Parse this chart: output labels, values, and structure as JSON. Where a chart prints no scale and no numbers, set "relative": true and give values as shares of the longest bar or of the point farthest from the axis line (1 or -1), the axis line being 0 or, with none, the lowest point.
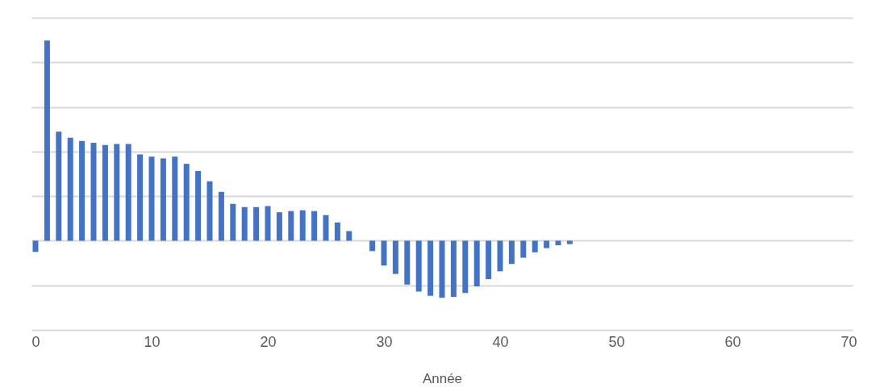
{
  "chart_data": {
    "type": "bar",
    "relative": true,
    "xlabel": "Année",
    "x": [
      0,
      1,
      2,
      3,
      4,
      5,
      6,
      7,
      8,
      9,
      10,
      11,
      12,
      13,
      14,
      15,
      16,
      17,
      18,
      19,
      20,
      21,
      22,
      23,
      24,
      25,
      26,
      27,
      28,
      29,
      30,
      31,
      32,
      33,
      34,
      35,
      36,
      37,
      38,
      39,
      40,
      41,
      42,
      43,
      44,
      45,
      46
    ],
    "values": [
      -0.056,
      1,
      0.545,
      0.514,
      0.498,
      0.489,
      0.478,
      0.483,
      0.483,
      0.431,
      0.42,
      0.411,
      0.42,
      0.384,
      0.348,
      0.297,
      0.244,
      0.184,
      0.168,
      0.168,
      0.173,
      0.142,
      0.148,
      0.152,
      0.148,
      0.128,
      0.091,
      0.048,
      0,
      -0.052,
      -0.124,
      -0.166,
      -0.219,
      -0.254,
      -0.275,
      -0.285,
      -0.281,
      -0.261,
      -0.228,
      -0.192,
      -0.153,
      -0.116,
      -0.085,
      -0.058,
      -0.037,
      -0.023,
      -0.017
    ],
    "color": "#4472c4",
    "xlim": [
      0,
      70
    ],
    "xticks": [
      0,
      10,
      20,
      30,
      40,
      50,
      60,
      70
    ],
    "grid": "y"
  }
}
